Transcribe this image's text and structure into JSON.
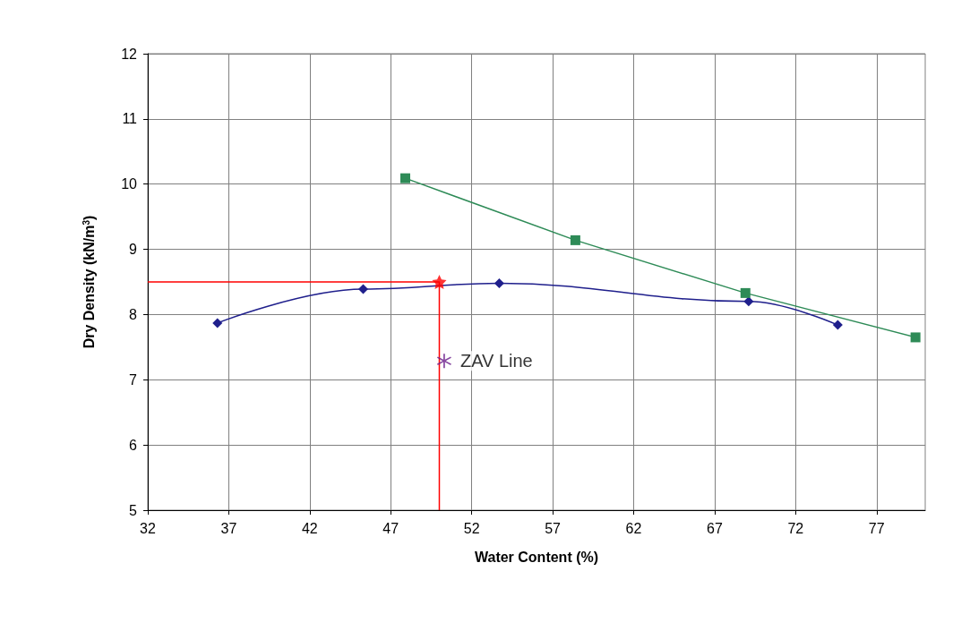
{
  "chart_data": {
    "type": "line",
    "xlabel": "Water Content (%)",
    "ylabel": "Dry Density (kN/m$^{3}$)",
    "xlim": [
      32,
      80
    ],
    "xticks": [
      32,
      37,
      42,
      47,
      52,
      57,
      62,
      67,
      72,
      77
    ],
    "ylim": [
      5,
      12
    ],
    "yticks": [
      5,
      6,
      7,
      8,
      9,
      10,
      11,
      12
    ],
    "grid": true,
    "legend": false,
    "series": [
      {
        "color": "#1f1f8c",
        "marker": "diamond",
        "x": [
          36.3,
          45.3,
          53.7,
          69.1,
          74.6
        ],
        "values": [
          7.87,
          8.39,
          8.48,
          8.2,
          7.84
        ]
      },
      {
        "color": "#2e8b57",
        "marker": "square",
        "x": [
          47.9,
          58.4,
          68.9,
          79.4
        ],
        "values": [
          10.09,
          9.14,
          8.33,
          7.65
        ]
      },
      {
        "color": "#ff0000",
        "marker": "none",
        "x": [
          32,
          50,
          50
        ],
        "values": [
          8.5,
          8.5,
          5
        ]
      },
      {
        "type": "scatter",
        "color": "#ff0000",
        "marker": "star",
        "x": [
          50
        ],
        "values": [
          8.5
        ]
      },
      {
        "type": "scatter",
        "name": "ZAV Line",
        "color": "#6a1b8a",
        "marker": "cross",
        "x": [
          50.3
        ],
        "values": [
          7.29
        ]
      }
    ]
  }
}
